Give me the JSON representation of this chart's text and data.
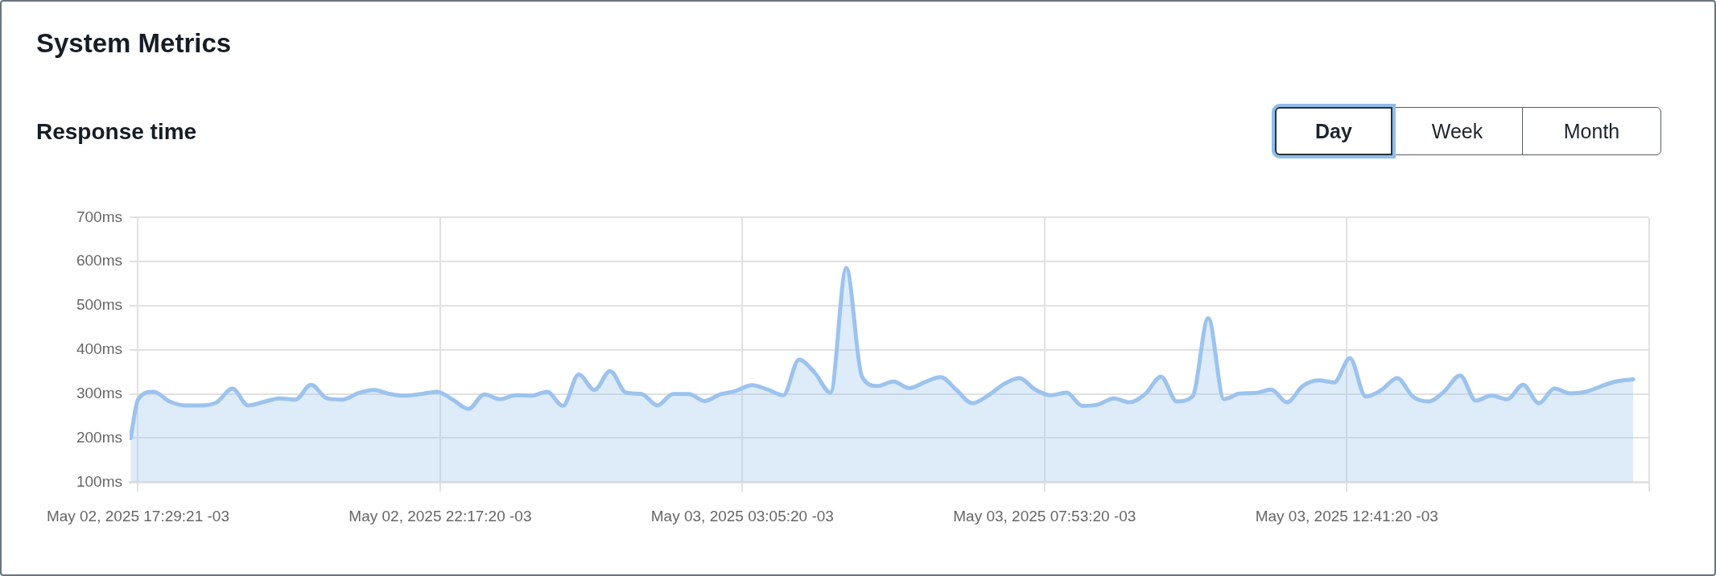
{
  "chart_data": {
    "type": "area",
    "title": "System Metrics",
    "subtitle": "Response time",
    "annotations": [
      "Day",
      "Week",
      "Month"
    ],
    "x": [
      "2025-05-02T17:22",
      "2025-05-02T17:29",
      "2025-05-02T17:44",
      "2025-05-02T17:59",
      "2025-05-02T18:14",
      "2025-05-02T18:29",
      "2025-05-02T18:44",
      "2025-05-02T18:59",
      "2025-05-02T19:14",
      "2025-05-02T19:29",
      "2025-05-02T19:44",
      "2025-05-02T19:59",
      "2025-05-02T20:14",
      "2025-05-02T20:29",
      "2025-05-02T20:44",
      "2025-05-02T20:59",
      "2025-05-02T21:14",
      "2025-05-02T21:29",
      "2025-05-02T21:44",
      "2025-05-02T21:59",
      "2025-05-02T22:14",
      "2025-05-02T22:29",
      "2025-05-02T22:44",
      "2025-05-02T22:59",
      "2025-05-02T23:14",
      "2025-05-02T23:29",
      "2025-05-02T23:44",
      "2025-05-02T23:59",
      "2025-05-03T00:14",
      "2025-05-03T00:29",
      "2025-05-03T00:44",
      "2025-05-03T00:59",
      "2025-05-03T01:14",
      "2025-05-03T01:29",
      "2025-05-03T01:44",
      "2025-05-03T01:59",
      "2025-05-03T02:14",
      "2025-05-03T02:29",
      "2025-05-03T02:44",
      "2025-05-03T02:59",
      "2025-05-03T03:14",
      "2025-05-03T03:29",
      "2025-05-03T03:44",
      "2025-05-03T03:59",
      "2025-05-03T04:14",
      "2025-05-03T04:29",
      "2025-05-03T04:44",
      "2025-05-03T04:59",
      "2025-05-03T05:14",
      "2025-05-03T05:29",
      "2025-05-03T05:44",
      "2025-05-03T05:59",
      "2025-05-03T06:14",
      "2025-05-03T06:29",
      "2025-05-03T06:44",
      "2025-05-03T06:59",
      "2025-05-03T07:14",
      "2025-05-03T07:29",
      "2025-05-03T07:44",
      "2025-05-03T07:59",
      "2025-05-03T08:14",
      "2025-05-03T08:29",
      "2025-05-03T08:44",
      "2025-05-03T08:59",
      "2025-05-03T09:14",
      "2025-05-03T09:29",
      "2025-05-03T09:44",
      "2025-05-03T09:59",
      "2025-05-03T10:14",
      "2025-05-03T10:29",
      "2025-05-03T10:44",
      "2025-05-03T10:59",
      "2025-05-03T11:14",
      "2025-05-03T11:29",
      "2025-05-03T11:44",
      "2025-05-03T11:59",
      "2025-05-03T12:14",
      "2025-05-03T12:29",
      "2025-05-03T12:44",
      "2025-05-03T12:59",
      "2025-05-03T13:14",
      "2025-05-03T13:29",
      "2025-05-03T13:44",
      "2025-05-03T13:59",
      "2025-05-03T14:14",
      "2025-05-03T14:29",
      "2025-05-03T14:44",
      "2025-05-03T14:59",
      "2025-05-03T15:14",
      "2025-05-03T15:29",
      "2025-05-03T15:44",
      "2025-05-03T15:59",
      "2025-05-03T16:14",
      "2025-05-03T16:29",
      "2025-05-03T16:44",
      "2025-05-03T16:59",
      "2025-05-03T17:14"
    ],
    "values": [
      200,
      287,
      305,
      283,
      274,
      274,
      281,
      312,
      274,
      282,
      290,
      287,
      321,
      290,
      287,
      302,
      309,
      300,
      296,
      300,
      305,
      287,
      266,
      299,
      288,
      297,
      296,
      305,
      273,
      344,
      309,
      352,
      303,
      300,
      274,
      300,
      300,
      284,
      299,
      307,
      320,
      310,
      297,
      378,
      348,
      303,
      586,
      339,
      318,
      328,
      313,
      327,
      338,
      309,
      279,
      296,
      322,
      336,
      310,
      297,
      303,
      273,
      276,
      290,
      281,
      300,
      339,
      283,
      294,
      472,
      288,
      301,
      302,
      310,
      281,
      318,
      331,
      326,
      381,
      294,
      309,
      336,
      294,
      283,
      306,
      342,
      285,
      296,
      288,
      321,
      279,
      312,
      301,
      305,
      318,
      329,
      333
    ],
    "color": "#9cc3ee",
    "xlim": [
      "2025-05-02T17:21",
      "2025-05-03T17:29"
    ],
    "xticks": [
      {
        "value": "2025-05-02T17:29",
        "label": "May 02, 2025 17:29:21 -03"
      },
      {
        "value": "2025-05-02T22:17",
        "label": "May 02, 2025 22:17:20 -03"
      },
      {
        "value": "2025-05-03T03:05",
        "label": "May 03, 2025 03:05:20 -03"
      },
      {
        "value": "2025-05-03T07:53",
        "label": "May 03, 2025 07:53:20 -03"
      },
      {
        "value": "2025-05-03T12:41",
        "label": "May 03, 2025 12:41:20 -03"
      },
      {
        "value": "2025-05-03T17:29",
        "label": null
      }
    ],
    "ylim": [
      100,
      700
    ],
    "yticks": [
      {
        "value": 100,
        "label": "100ms"
      },
      {
        "value": 200,
        "label": "200ms"
      },
      {
        "value": 300,
        "label": "300ms"
      },
      {
        "value": 400,
        "label": "400ms"
      },
      {
        "value": 500,
        "label": "500ms"
      },
      {
        "value": 600,
        "label": "600ms"
      },
      {
        "value": 700,
        "label": "700ms"
      }
    ],
    "grid": true
  }
}
